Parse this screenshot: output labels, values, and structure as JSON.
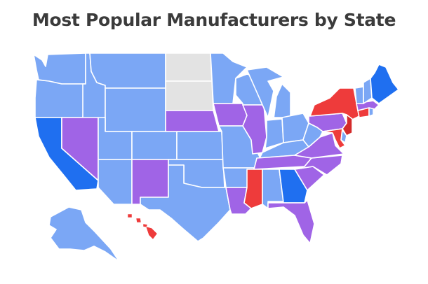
{
  "title": "Most Popular Manufacturers by State",
  "colors": {
    "light_blue": "#7ba7f5",
    "blue": "#1f6ff0",
    "purple": "#a064e6",
    "red": "#ee3b3b",
    "dark_red": "#d42a2a",
    "gray": "#e3e3e3"
  },
  "states": [
    {
      "id": "WA",
      "color": "light_blue"
    },
    {
      "id": "OR",
      "color": "light_blue"
    },
    {
      "id": "CA",
      "color": "blue"
    },
    {
      "id": "ID",
      "color": "light_blue"
    },
    {
      "id": "NV",
      "color": "purple"
    },
    {
      "id": "MT",
      "color": "light_blue"
    },
    {
      "id": "WY",
      "color": "light_blue"
    },
    {
      "id": "UT",
      "color": "light_blue"
    },
    {
      "id": "AZ",
      "color": "light_blue"
    },
    {
      "id": "CO",
      "color": "light_blue"
    },
    {
      "id": "NM",
      "color": "purple"
    },
    {
      "id": "ND",
      "color": "gray"
    },
    {
      "id": "SD",
      "color": "gray"
    },
    {
      "id": "NE",
      "color": "purple"
    },
    {
      "id": "KS",
      "color": "light_blue"
    },
    {
      "id": "OK",
      "color": "light_blue"
    },
    {
      "id": "TX",
      "color": "light_blue"
    },
    {
      "id": "MN",
      "color": "light_blue"
    },
    {
      "id": "IA",
      "color": "purple"
    },
    {
      "id": "MO",
      "color": "light_blue"
    },
    {
      "id": "AR",
      "color": "light_blue"
    },
    {
      "id": "LA",
      "color": "purple"
    },
    {
      "id": "WI",
      "color": "light_blue"
    },
    {
      "id": "IL",
      "color": "purple"
    },
    {
      "id": "MI",
      "color": "light_blue"
    },
    {
      "id": "IN",
      "color": "light_blue"
    },
    {
      "id": "OH",
      "color": "light_blue"
    },
    {
      "id": "KY",
      "color": "light_blue"
    },
    {
      "id": "TN",
      "color": "purple"
    },
    {
      "id": "MS",
      "color": "red"
    },
    {
      "id": "AL",
      "color": "light_blue"
    },
    {
      "id": "GA",
      "color": "blue"
    },
    {
      "id": "FL",
      "color": "purple"
    },
    {
      "id": "SC",
      "color": "purple"
    },
    {
      "id": "NC",
      "color": "purple"
    },
    {
      "id": "VA",
      "color": "purple"
    },
    {
      "id": "WV",
      "color": "light_blue"
    },
    {
      "id": "PA",
      "color": "purple"
    },
    {
      "id": "NY",
      "color": "red"
    },
    {
      "id": "NJ",
      "color": "dark_red"
    },
    {
      "id": "DE",
      "color": "light_blue"
    },
    {
      "id": "MD",
      "color": "red"
    },
    {
      "id": "CT",
      "color": "red"
    },
    {
      "id": "RI",
      "color": "light_blue"
    },
    {
      "id": "MA",
      "color": "purple"
    },
    {
      "id": "VT",
      "color": "light_blue"
    },
    {
      "id": "NH",
      "color": "light_blue"
    },
    {
      "id": "ME",
      "color": "blue"
    },
    {
      "id": "AK",
      "color": "light_blue"
    },
    {
      "id": "HI",
      "color": "red"
    }
  ]
}
